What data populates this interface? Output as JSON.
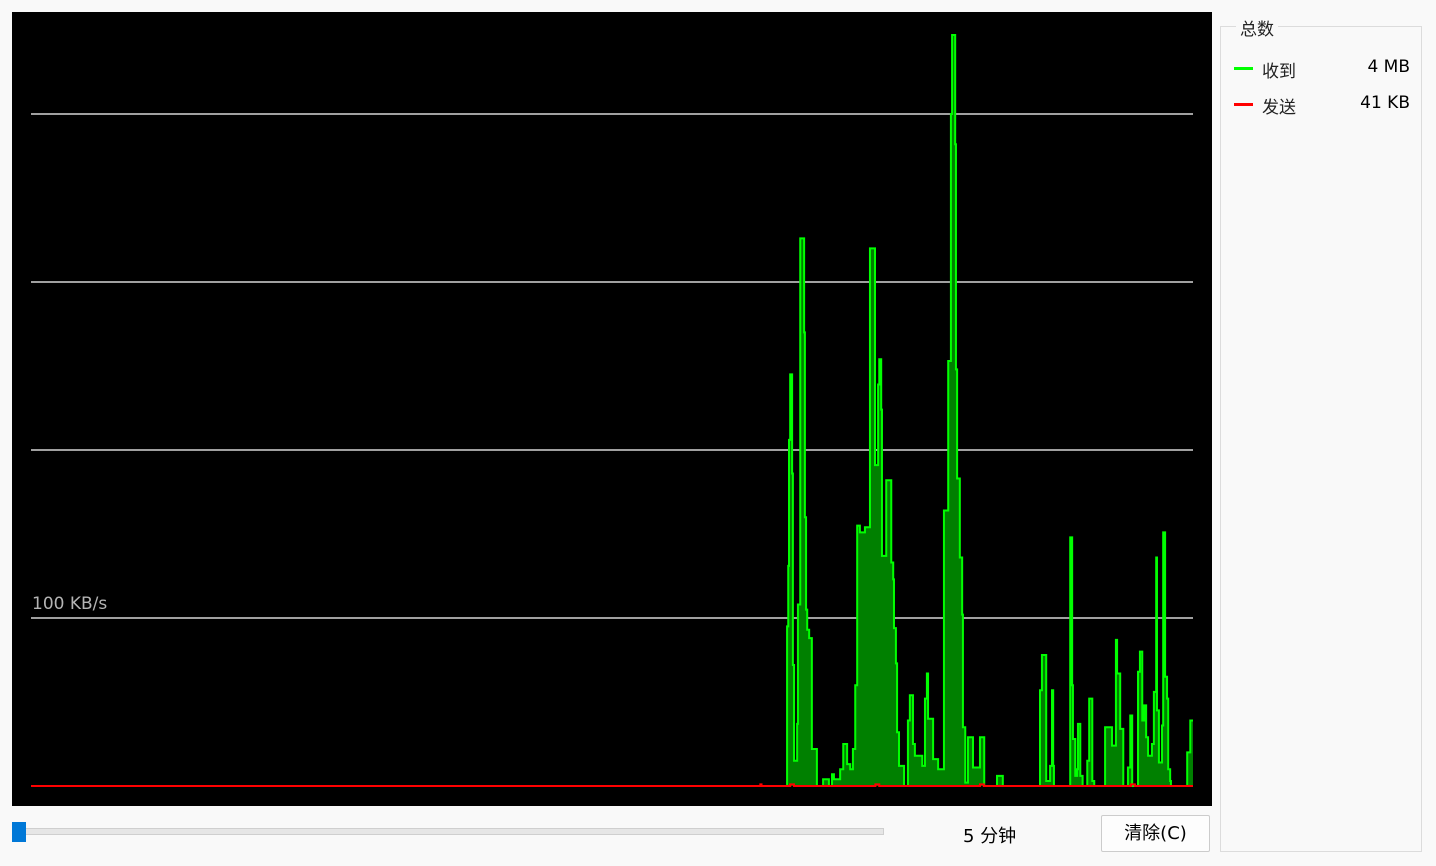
{
  "graph": {
    "grid_label": "100 KB/s"
  },
  "totals": {
    "title": "总数",
    "rows": [
      {
        "label": "收到",
        "value": "4 MB",
        "color": "#00ff00"
      },
      {
        "label": "发送",
        "value": "41 KB",
        "color": "#ff0000"
      }
    ]
  },
  "controls": {
    "interval_label": "5 分钟",
    "interval_slider_position": 0,
    "clear_button": "清除(C)"
  },
  "chart_data": {
    "type": "area",
    "title": "",
    "xlabel": "",
    "ylabel": "",
    "x_unit": "seconds",
    "xlim": [
      0,
      300
    ],
    "ylim": [
      0,
      460
    ],
    "y_unit": "KB/s",
    "gridlines": [
      100,
      200,
      300,
      400
    ],
    "grid": true,
    "background": "#000000",
    "series": [
      {
        "name": "收到",
        "line_color": "#00ff00",
        "fill_color": "#008000",
        "points": [
          [
            0,
            0
          ],
          [
            195.0,
            0
          ],
          [
            195.2,
            95
          ],
          [
            195.5,
            131
          ],
          [
            195.7,
            206
          ],
          [
            196.0,
            245
          ],
          [
            196.5,
            186
          ],
          [
            196.7,
            72
          ],
          [
            197.0,
            15
          ],
          [
            197.8,
            37
          ],
          [
            198.0,
            108
          ],
          [
            198.6,
            326
          ],
          [
            199.6,
            270
          ],
          [
            199.8,
            160
          ],
          [
            200.1,
            105
          ],
          [
            200.4,
            93
          ],
          [
            200.9,
            88
          ],
          [
            201.6,
            22
          ],
          [
            202.9,
            0
          ],
          [
            204.5,
            4
          ],
          [
            206.0,
            0
          ],
          [
            206.8,
            7
          ],
          [
            207.3,
            4
          ],
          [
            208.9,
            10
          ],
          [
            209.7,
            25
          ],
          [
            210.7,
            13
          ],
          [
            211.5,
            10
          ],
          [
            212.2,
            22
          ],
          [
            212.8,
            60
          ],
          [
            213.3,
            155
          ],
          [
            214.0,
            151
          ],
          [
            215.3,
            154
          ],
          [
            216.6,
            320
          ],
          [
            217.9,
            191
          ],
          [
            218.7,
            239
          ],
          [
            219.0,
            254
          ],
          [
            219.5,
            224
          ],
          [
            219.7,
            137
          ],
          [
            220.8,
            182
          ],
          [
            222.1,
            133
          ],
          [
            222.6,
            123
          ],
          [
            222.8,
            94
          ],
          [
            223.3,
            73
          ],
          [
            223.6,
            32
          ],
          [
            224.1,
            12
          ],
          [
            225.4,
            0
          ],
          [
            226.4,
            39
          ],
          [
            226.9,
            54
          ],
          [
            227.7,
            25
          ],
          [
            228.2,
            18
          ],
          [
            230.1,
            12
          ],
          [
            230.8,
            52
          ],
          [
            231.3,
            67
          ],
          [
            231.6,
            40
          ],
          [
            232.9,
            16
          ],
          [
            234.2,
            10
          ],
          [
            235.7,
            164
          ],
          [
            236.8,
            253
          ],
          [
            237.5,
            400
          ],
          [
            237.8,
            447
          ],
          [
            238.6,
            382
          ],
          [
            238.8,
            248
          ],
          [
            239.1,
            183
          ],
          [
            239.8,
            136
          ],
          [
            240.4,
            102
          ],
          [
            240.6,
            35
          ],
          [
            241.2,
            2
          ],
          [
            241.9,
            29
          ],
          [
            243.2,
            11
          ],
          [
            245.0,
            29
          ],
          [
            246.1,
            0
          ],
          [
            249.4,
            6
          ],
          [
            250.9,
            0
          ],
          [
            260.5,
            57
          ],
          [
            261.0,
            78
          ],
          [
            262.1,
            3
          ],
          [
            263.1,
            12
          ],
          [
            263.6,
            57
          ],
          [
            263.9,
            12
          ],
          [
            264.1,
            0
          ],
          [
            268.3,
            148
          ],
          [
            268.8,
            60
          ],
          [
            269.0,
            28
          ],
          [
            269.6,
            6
          ],
          [
            270.1,
            10
          ],
          [
            270.3,
            37
          ],
          [
            270.9,
            6
          ],
          [
            271.5,
            0
          ],
          [
            272.7,
            15
          ],
          [
            273.2,
            52
          ],
          [
            274.0,
            3
          ],
          [
            274.5,
            0
          ],
          [
            277.3,
            35
          ],
          [
            279.1,
            24
          ],
          [
            280.1,
            87
          ],
          [
            280.4,
            67
          ],
          [
            281.2,
            34
          ],
          [
            282.0,
            0
          ],
          [
            283.2,
            11
          ],
          [
            283.8,
            42
          ],
          [
            284.3,
            0
          ],
          [
            285.8,
            68
          ],
          [
            286.3,
            80
          ],
          [
            286.9,
            39
          ],
          [
            287.4,
            48
          ],
          [
            287.9,
            29
          ],
          [
            288.4,
            18
          ],
          [
            289.4,
            25
          ],
          [
            289.9,
            56
          ],
          [
            290.5,
            136
          ],
          [
            290.7,
            45
          ],
          [
            291.2,
            14
          ],
          [
            292.0,
            36
          ],
          [
            292.3,
            151
          ],
          [
            292.8,
            65
          ],
          [
            293.3,
            52
          ],
          [
            293.6,
            10
          ],
          [
            294.1,
            3
          ],
          [
            294.3,
            0
          ],
          [
            298.0,
            0
          ],
          [
            298.5,
            20
          ],
          [
            299.3,
            39
          ],
          [
            300,
            39
          ]
        ]
      },
      {
        "name": "发送",
        "line_color": "#ff0000",
        "points": [
          [
            0,
            0
          ],
          [
            188,
            0
          ],
          [
            188.3,
            1
          ],
          [
            188.6,
            0
          ],
          [
            196,
            1
          ],
          [
            197,
            0
          ],
          [
            218,
            1
          ],
          [
            219,
            0
          ],
          [
            245,
            1
          ],
          [
            246,
            0
          ],
          [
            284,
            1
          ],
          [
            285,
            0
          ],
          [
            300,
            0
          ]
        ]
      }
    ]
  }
}
